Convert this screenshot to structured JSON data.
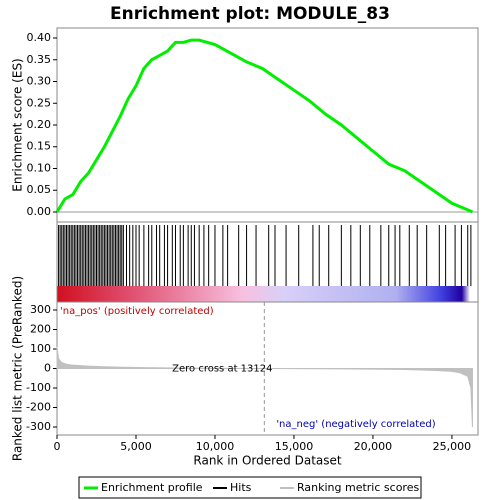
{
  "chart_data": [
    {
      "type": "line",
      "title": "Enrichment plot: MODULE_83",
      "y_label": "Enrichment score (ES)",
      "x": [
        0,
        500,
        1000,
        1500,
        2000,
        2500,
        3000,
        3500,
        4000,
        4500,
        5000,
        5500,
        6000,
        6500,
        7000,
        7500,
        8000,
        8500,
        9000,
        9500,
        10000,
        11000,
        12000,
        13000,
        14000,
        15000,
        16000,
        17000,
        18000,
        19000,
        20000,
        21000,
        22000,
        23000,
        24000,
        25000,
        26000,
        26300
      ],
      "series": [
        {
          "name": "Enrichment profile",
          "color": "#00ee00",
          "values": [
            0,
            0.03,
            0.04,
            0.07,
            0.09,
            0.12,
            0.15,
            0.185,
            0.22,
            0.26,
            0.29,
            0.33,
            0.35,
            0.36,
            0.37,
            0.39,
            0.39,
            0.395,
            0.395,
            0.39,
            0.385,
            0.365,
            0.345,
            0.33,
            0.305,
            0.28,
            0.255,
            0.225,
            0.2,
            0.17,
            0.14,
            0.11,
            0.095,
            0.07,
            0.045,
            0.02,
            0.005,
            0
          ]
        }
      ],
      "xlim": [
        0,
        26650
      ],
      "ylim": [
        -0.023,
        0.423
      ],
      "yticks": [
        {
          "value": 0,
          "label": "0.00"
        },
        0.05,
        {
          "value": 0.1,
          "label": "0.10"
        },
        0.15,
        {
          "value": 0.2,
          "label": "0.20"
        },
        0.25,
        {
          "value": 0.3,
          "label": "0.30"
        },
        0.35,
        {
          "value": 0.4,
          "label": "0.40"
        }
      ]
    },
    {
      "type": "hits",
      "name": "Hits",
      "color": "#000000",
      "xlim": [
        0,
        26650
      ],
      "x": [
        100,
        200,
        300,
        400,
        500,
        600,
        700,
        800,
        900,
        1000,
        1100,
        1200,
        1300,
        1400,
        1500,
        1600,
        1700,
        1800,
        1900,
        2000,
        2100,
        2200,
        2300,
        2400,
        2500,
        2600,
        2700,
        2800,
        2900,
        3000,
        3100,
        3200,
        3300,
        3400,
        3500,
        3600,
        3700,
        3800,
        3900,
        4000,
        4100,
        4200,
        4400,
        4600,
        4800,
        5000,
        5200,
        5500,
        5800,
        6000,
        6300,
        6500,
        6800,
        7000,
        7300,
        7500,
        7800,
        8000,
        8300,
        8500,
        8700,
        9000,
        9300,
        9600,
        10000,
        10500,
        10800,
        11500,
        12000,
        12600,
        13400,
        13800,
        14500,
        15300,
        16200,
        16600,
        17200,
        18000,
        18600,
        19200,
        19800,
        20500,
        21000,
        21400,
        21700,
        22300,
        22800,
        23400,
        24200,
        24600,
        25200,
        25600,
        26000,
        26200
      ]
    },
    {
      "type": "area",
      "y_label": "Ranked list metric (PreRanked)",
      "x_label": "Rank in Ordered Dataset",
      "x": [
        0,
        100,
        300,
        600,
        1000,
        2000,
        3000,
        5000,
        8000,
        13124,
        18000,
        22000,
        24000,
        25000,
        25500,
        26000,
        26200,
        26300
      ],
      "series": [
        {
          "name": "Ranking metric scores",
          "color": "#c0c0c0",
          "values": [
            110,
            50,
            30,
            22,
            17,
            12,
            9,
            5,
            2,
            0,
            -2,
            -5,
            -10,
            -15,
            -22,
            -40,
            -100,
            -300
          ]
        }
      ],
      "xlim": [
        0,
        26650
      ],
      "ylim": [
        -341,
        341
      ],
      "yticks": [
        -300,
        -200,
        -100,
        0,
        100,
        200,
        300
      ],
      "xticks": [
        0,
        {
          "value": 5000,
          "label": "5,000"
        },
        {
          "value": 10000,
          "label": "10,000"
        },
        {
          "value": 15000,
          "label": "15,000"
        },
        {
          "value": 20000,
          "label": "20,000"
        },
        {
          "value": 25000,
          "label": "25,000"
        }
      ],
      "zero_cross": 13124,
      "zero_cross_label": "Zero cross at 13124",
      "pos_label": "'na_pos' (positively correlated)",
      "neg_label": "'na_neg' (negatively correlated)"
    }
  ]
}
